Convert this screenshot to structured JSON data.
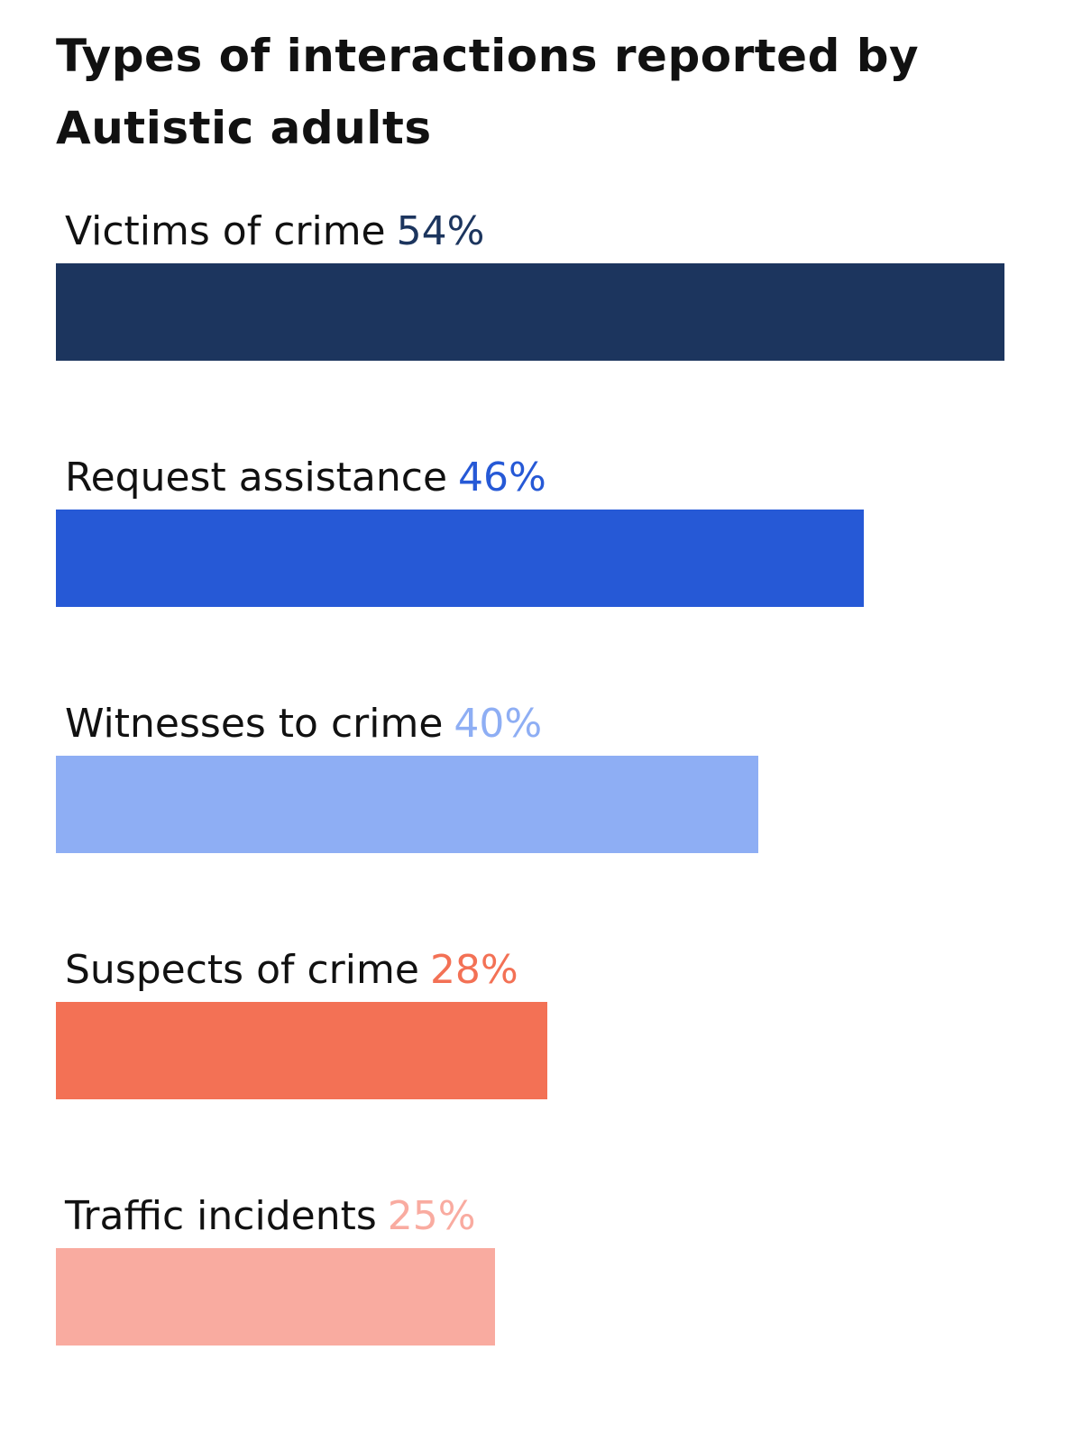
{
  "chart_data": {
    "type": "bar",
    "orientation": "horizontal",
    "title_lines": [
      "Types of interactions reported by",
      "Autistic adults"
    ],
    "categories": [
      "Victims of crime",
      "Request assistance",
      "Witnesses to crime",
      "Suspects of crime",
      "Traffic incidents"
    ],
    "values": [
      54,
      46,
      40,
      28,
      25
    ],
    "value_labels": [
      "54%",
      "46%",
      "40%",
      "28%",
      "25%"
    ],
    "colors": [
      "#1c355e",
      "#2659d6",
      "#8eaef4",
      "#f37155",
      "#f9aba0"
    ],
    "xlim": [
      0,
      54
    ],
    "grid": false,
    "legend": "none"
  }
}
